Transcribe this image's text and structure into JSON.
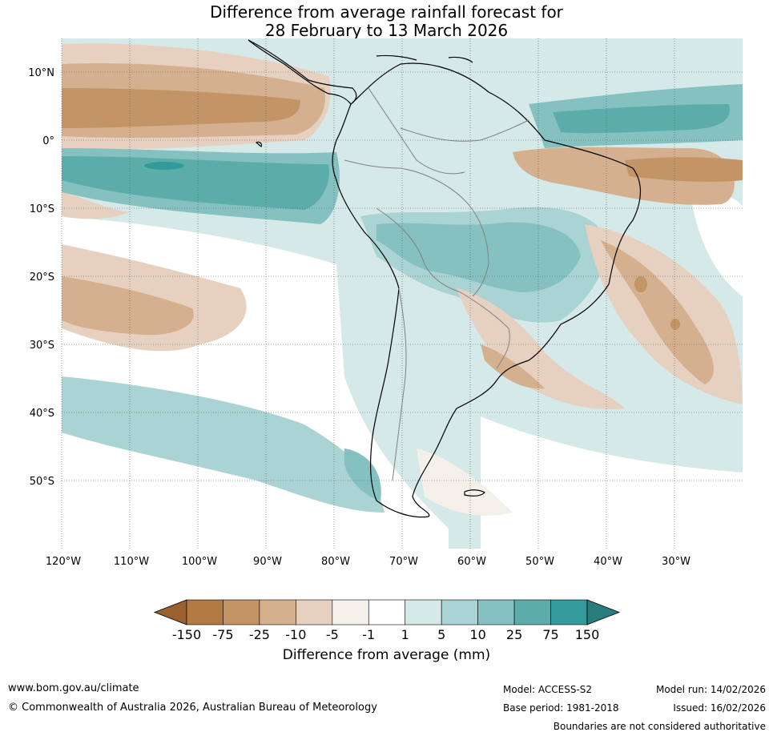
{
  "header": {
    "title_line1": "Difference from average rainfall forecast for",
    "title_line2": "28 February to 13 March 2026"
  },
  "map": {
    "lat_ticks": [
      "10°N",
      "0°",
      "10°S",
      "20°S",
      "30°S",
      "40°S",
      "50°S"
    ],
    "lon_ticks": [
      "120°W",
      "110°W",
      "100°W",
      "90°W",
      "80°W",
      "70°W",
      "60°W",
      "50°W",
      "40°W",
      "30°W"
    ],
    "land_outline_color": "#000000",
    "border_color": "#808080"
  },
  "colorbar": {
    "tick_labels": [
      "-150",
      "-75",
      "-25",
      "-10",
      "-5",
      "-1",
      "1",
      "5",
      "10",
      "25",
      "75",
      "150"
    ],
    "colors": [
      "#9a6030",
      "#b07a42",
      "#c39465",
      "#d4b08f",
      "#e6d1c0",
      "#f3efe9",
      "#ffffff",
      "#d5e9e8",
      "#a9d4d3",
      "#85c1c0",
      "#5cadaa",
      "#34999a",
      "#2a7d7e"
    ],
    "label": "Difference from average (mm)"
  },
  "footer": {
    "url": "www.bom.gov.au/climate",
    "copyright": "© Commonwealth of Australia 2026, Australian Bureau of Meteorology",
    "model": "Model: ACCESS-S2",
    "base_period": "Base period: 1981-2018",
    "model_run": "Model run: 14/02/2026",
    "issued": "Issued: 16/02/2026",
    "disclaimer": "Boundaries are not considered authoritative"
  }
}
